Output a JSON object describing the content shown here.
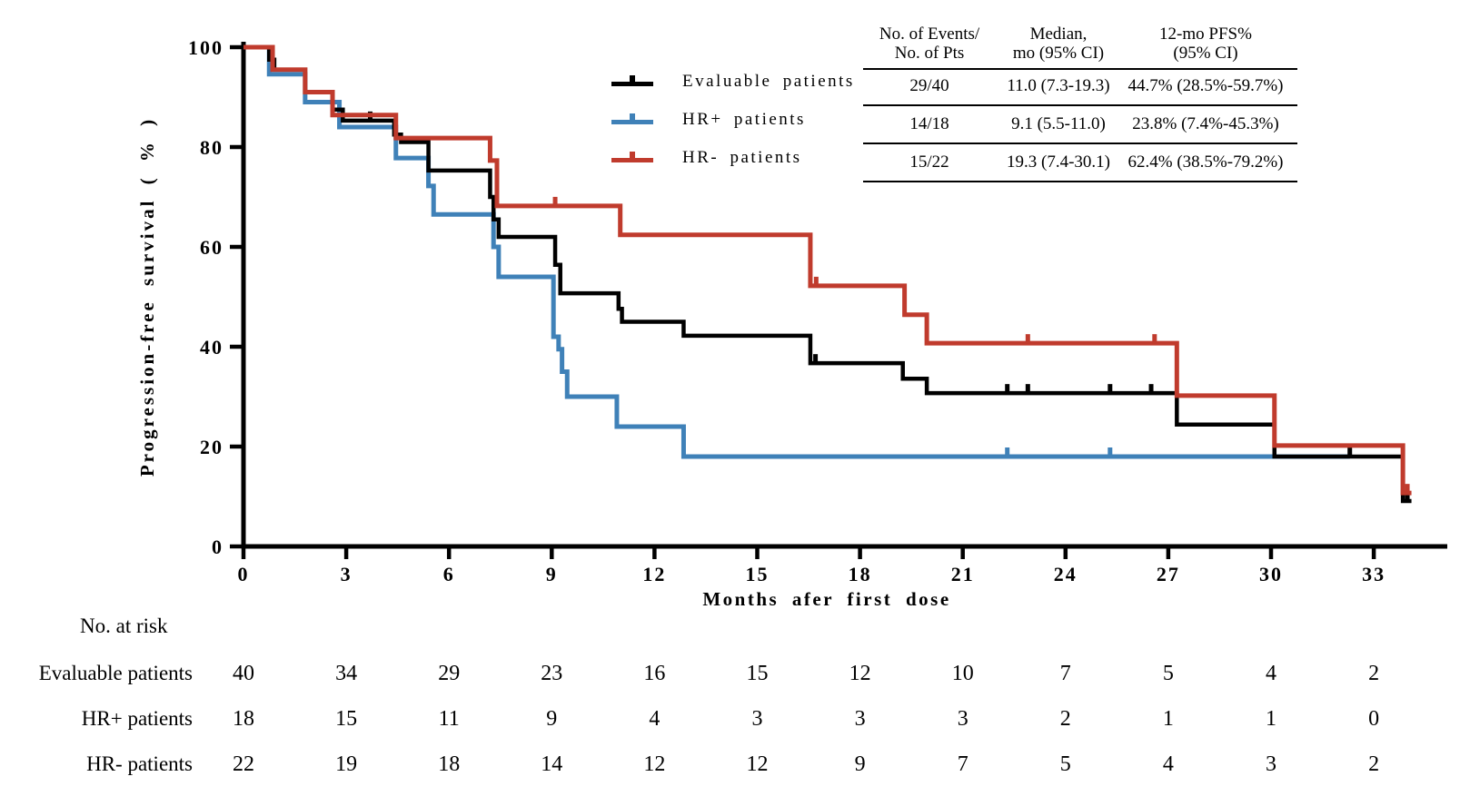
{
  "chart_data": {
    "type": "line",
    "subtype": "kaplan-meier-step",
    "title": "",
    "xlabel": "Months afer first dose",
    "ylabel": "Progression-free survival ( % )",
    "xlim": [
      0,
      35.2
    ],
    "ylim": [
      0,
      100
    ],
    "x_ticks": [
      0,
      3,
      6,
      9,
      12,
      15,
      18,
      21,
      24,
      27,
      30,
      33
    ],
    "y_ticks": [
      0,
      20,
      40,
      60,
      80,
      100
    ],
    "grid": "off",
    "legend_position": "upper-left-of-table",
    "series": [
      {
        "name": "HR+ patients",
        "color": "#3f81b8",
        "steps": [
          [
            0,
            100
          ],
          [
            0.75,
            94.6
          ],
          [
            1.8,
            89
          ],
          [
            2.8,
            84
          ],
          [
            4.45,
            77.8
          ],
          [
            5.4,
            72.2
          ],
          [
            5.55,
            66.5
          ],
          [
            7.3,
            60
          ],
          [
            7.45,
            54
          ],
          [
            9.05,
            42
          ],
          [
            9.2,
            39.5
          ],
          [
            9.3,
            35
          ],
          [
            9.45,
            30
          ],
          [
            10.9,
            24
          ],
          [
            12.85,
            18
          ]
        ],
        "censor_marks": [
          22.3,
          25.3
        ],
        "end_month": 32.3
      },
      {
        "name": "Evaluable patients",
        "color": "#000000",
        "steps": [
          [
            0,
            100
          ],
          [
            0.75,
            97.5
          ],
          [
            0.9,
            95.5
          ],
          [
            1.8,
            91
          ],
          [
            2.6,
            87.5
          ],
          [
            2.9,
            85.3
          ],
          [
            4.4,
            82.5
          ],
          [
            4.6,
            81
          ],
          [
            5.4,
            75.3
          ],
          [
            7.2,
            70
          ],
          [
            7.3,
            65.5
          ],
          [
            7.45,
            62
          ],
          [
            9.1,
            56.4
          ],
          [
            9.25,
            50.7
          ],
          [
            10.95,
            47.6
          ],
          [
            11.05,
            45
          ],
          [
            12.85,
            42.2
          ],
          [
            16.55,
            36.7
          ],
          [
            19.25,
            33.6
          ],
          [
            19.95,
            30.7
          ],
          [
            27.25,
            24.4
          ],
          [
            30.1,
            18
          ],
          [
            33.85,
            9.1
          ]
        ],
        "censor_marks": [
          3.7,
          16.7,
          22.3,
          22.9,
          25.3,
          26.5,
          32.3,
          33.98
        ],
        "end_month": 34.1
      },
      {
        "name": "HR- patients",
        "color": "#c03b2d",
        "steps": [
          [
            0,
            100
          ],
          [
            0.85,
            95.5
          ],
          [
            1.8,
            91
          ],
          [
            2.6,
            86.4
          ],
          [
            4.45,
            81.8
          ],
          [
            7.2,
            77.3
          ],
          [
            7.4,
            68.2
          ],
          [
            11.0,
            62.4
          ],
          [
            16.55,
            52.2
          ],
          [
            19.3,
            46.4
          ],
          [
            19.95,
            40.7
          ],
          [
            27.25,
            30.2
          ],
          [
            30.1,
            20.2
          ],
          [
            33.85,
            10.7
          ]
        ],
        "censor_marks": [
          9.1,
          16.72,
          22.9,
          26.6,
          33.98
        ],
        "end_month": 34.1
      }
    ],
    "legend_order": [
      "Evaluable patients",
      "HR+ patients",
      "HR- patients"
    ]
  },
  "stats_table": {
    "headers": [
      [
        "No. of Events/",
        "No. of Pts"
      ],
      [
        "Median,",
        "mo (95% CI)"
      ],
      [
        "12-mo PFS%",
        "(95% CI)"
      ]
    ],
    "rows": [
      [
        "29/40",
        "11.0 (7.3-19.3)",
        "44.7% (28.5%-59.7%)"
      ],
      [
        "14/18",
        "9.1 (5.5-11.0)",
        "23.8% (7.4%-45.3%)"
      ],
      [
        "15/22",
        "19.3 (7.4-30.1)",
        "62.4% (38.5%-79.2%)"
      ]
    ]
  },
  "at_risk": {
    "title": "No. at risk",
    "rows": [
      {
        "label": "Evaluable patients",
        "values": [
          "40",
          "34",
          "29",
          "23",
          "16",
          "15",
          "12",
          "10",
          "7",
          "5",
          "4",
          "2"
        ]
      },
      {
        "label": "HR+ patients",
        "values": [
          "18",
          "15",
          "11",
          "9",
          "4",
          "3",
          "3",
          "3",
          "2",
          "1",
          "1",
          "0"
        ]
      },
      {
        "label": "HR- patients",
        "values": [
          "22",
          "19",
          "18",
          "14",
          "12",
          "12",
          "9",
          "7",
          "5",
          "4",
          "3",
          "2"
        ]
      }
    ]
  }
}
